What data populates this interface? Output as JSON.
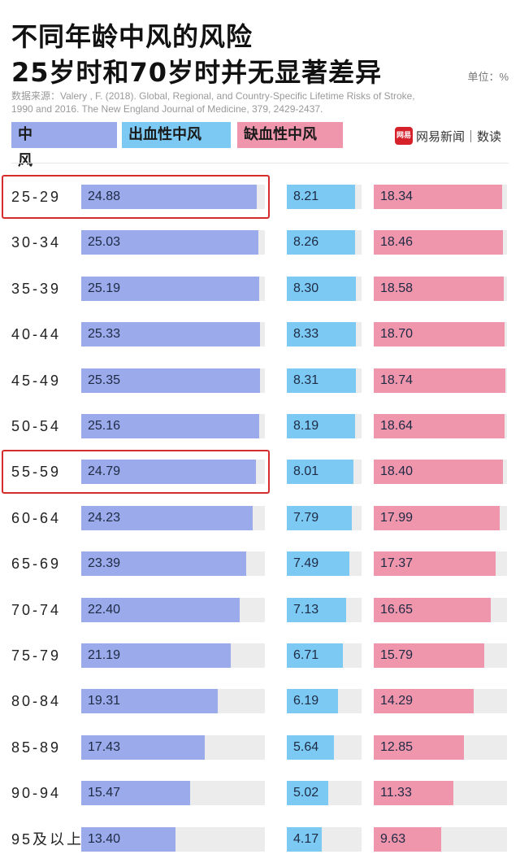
{
  "title_line1": "不同年龄中风的风险",
  "title_line2": "25岁时和70岁时并无显著差异",
  "unit": "单位：%",
  "source_line1": "数据来源：Valery , F. (2018). Global, Regional, and Country-Specific Lifetime Risks of Stroke,",
  "source_line2": "1990 and 2016. The New England Journal of Medicine, 379, 2429-2437.",
  "brand_logo": "网易",
  "brand": "网易新闻｜数读",
  "colors": {
    "stroke": "#9aaaea",
    "hemorrhagic": "#7cc9f3",
    "ischemic": "#ef96ad",
    "track": "#ececec",
    "highlight": "#d62c2c"
  },
  "chart_data": {
    "type": "bar",
    "categories": [
      "25-29",
      "30-34",
      "35-39",
      "40-44",
      "45-49",
      "50-54",
      "55-59",
      "60-64",
      "65-69",
      "70-74",
      "75-79",
      "80-84",
      "85-89",
      "90-94",
      "95及以上"
    ],
    "series": [
      {
        "name": "中　　风",
        "values": [
          24.88,
          25.03,
          25.19,
          25.33,
          25.35,
          25.16,
          24.79,
          24.23,
          23.39,
          22.4,
          21.19,
          19.31,
          17.43,
          15.47,
          13.4
        ]
      },
      {
        "name": "出血性中风",
        "values": [
          8.21,
          8.26,
          8.3,
          8.33,
          8.31,
          8.19,
          8.01,
          7.79,
          7.49,
          7.13,
          6.71,
          6.19,
          5.64,
          5.02,
          4.17
        ]
      },
      {
        "name": "缺血性中风",
        "values": [
          18.34,
          18.46,
          18.58,
          18.7,
          18.74,
          18.64,
          18.4,
          17.99,
          17.37,
          16.65,
          15.79,
          14.29,
          12.85,
          11.33,
          9.63
        ]
      }
    ],
    "highlighted_categories": [
      "25-29",
      "55-59"
    ],
    "legend_position": "top",
    "grid": false
  }
}
